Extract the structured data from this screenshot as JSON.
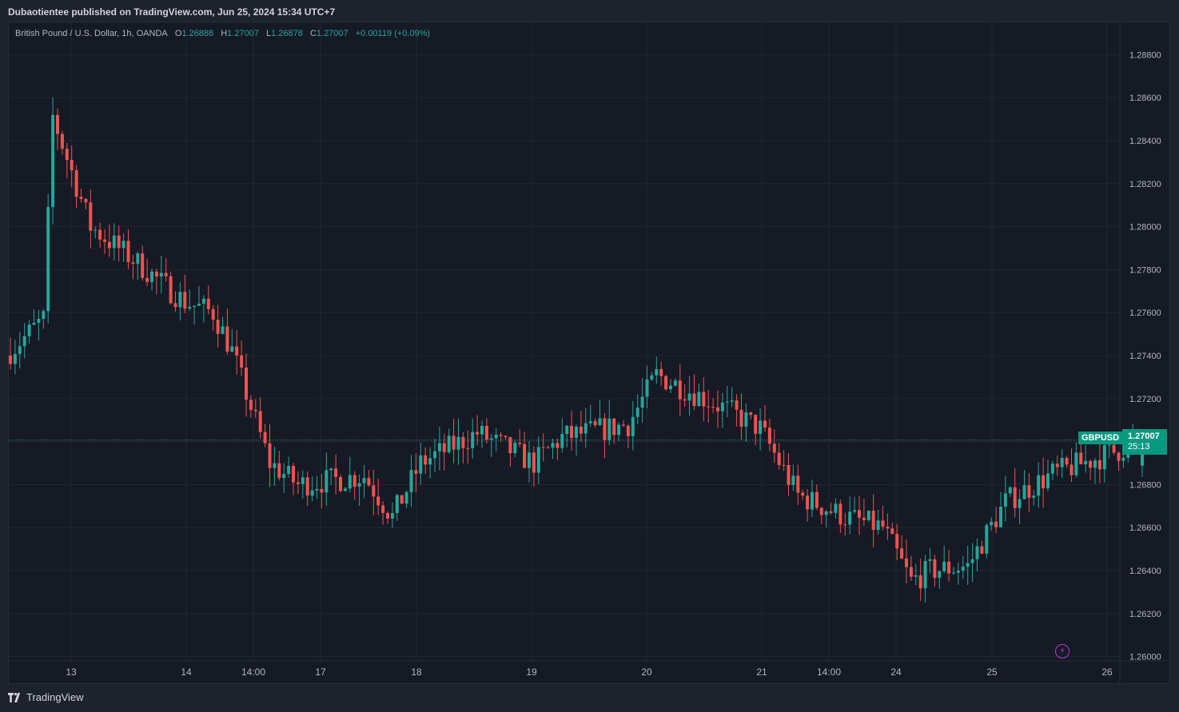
{
  "header": {
    "publish_text": "Dubaotientee published on TradingView.com, Jun 25, 2024 15:34 UTC+7"
  },
  "legend": {
    "title": "British Pound / U.S. Dollar, 1h, OANDA",
    "o_label": "O",
    "o_value": "1.26888",
    "h_label": "H",
    "h_value": "1.27007",
    "l_label": "L",
    "l_value": "1.26878",
    "c_label": "C",
    "c_value": "1.27007",
    "change": "+0.00119 (+0.09%)"
  },
  "price_tag": {
    "symbol": "GBPUSD",
    "price": "1.27007",
    "countdown": "25:13"
  },
  "footer": {
    "brand": "TradingView"
  },
  "colors": {
    "up": "#26a69a",
    "down": "#ef5350",
    "background": "#161a25",
    "grid": "#232733",
    "text": "#b2b5be"
  },
  "icons": [
    "lightning-icon",
    "tradingview-logo-icon"
  ],
  "chart_data": {
    "type": "candlestick",
    "title": "British Pound / U.S. Dollar, 1h, OANDA",
    "symbol": "GBPUSD",
    "interval": "1h",
    "ylim": [
      1.2598,
      1.2895
    ],
    "y_ticks": [
      "1.28800",
      "1.28600",
      "1.28400",
      "1.28200",
      "1.28000",
      "1.27800",
      "1.27600",
      "1.27400",
      "1.27200",
      "1.27000",
      "1.26800",
      "1.26600",
      "1.26400",
      "1.26200",
      "1.26000"
    ],
    "x_ticks": [
      "13",
      "14",
      "14:00",
      "17",
      "18",
      "19",
      "20",
      "21",
      "14:00",
      "24",
      "25",
      "26"
    ],
    "last_price": 1.27007,
    "grid": true,
    "series": [
      {
        "name": "GBPUSD",
        "anchors": [
          [
            0,
            1.274
          ],
          [
            8,
            1.2757
          ],
          [
            10,
            1.2851
          ],
          [
            18,
            1.28
          ],
          [
            28,
            1.2783
          ],
          [
            34,
            1.2772
          ],
          [
            38,
            1.2765
          ],
          [
            44,
            1.276
          ],
          [
            48,
            1.2742
          ],
          [
            56,
            1.269
          ],
          [
            62,
            1.268
          ],
          [
            76,
            1.2684
          ],
          [
            82,
            1.2665
          ],
          [
            88,
            1.269
          ],
          [
            100,
            1.2704
          ],
          [
            112,
            1.269
          ],
          [
            118,
            1.2702
          ],
          [
            132,
            1.2708
          ],
          [
            138,
            1.2731
          ],
          [
            152,
            1.2716
          ],
          [
            160,
            1.2706
          ],
          [
            168,
            1.2675
          ],
          [
            178,
            1.2665
          ],
          [
            186,
            1.266
          ],
          [
            192,
            1.2635
          ],
          [
            196,
            1.264
          ],
          [
            204,
            1.2642
          ],
          [
            212,
            1.2672
          ],
          [
            222,
            1.2685
          ],
          [
            236,
            1.2696
          ],
          [
            240,
            1.27
          ]
        ]
      }
    ]
  }
}
